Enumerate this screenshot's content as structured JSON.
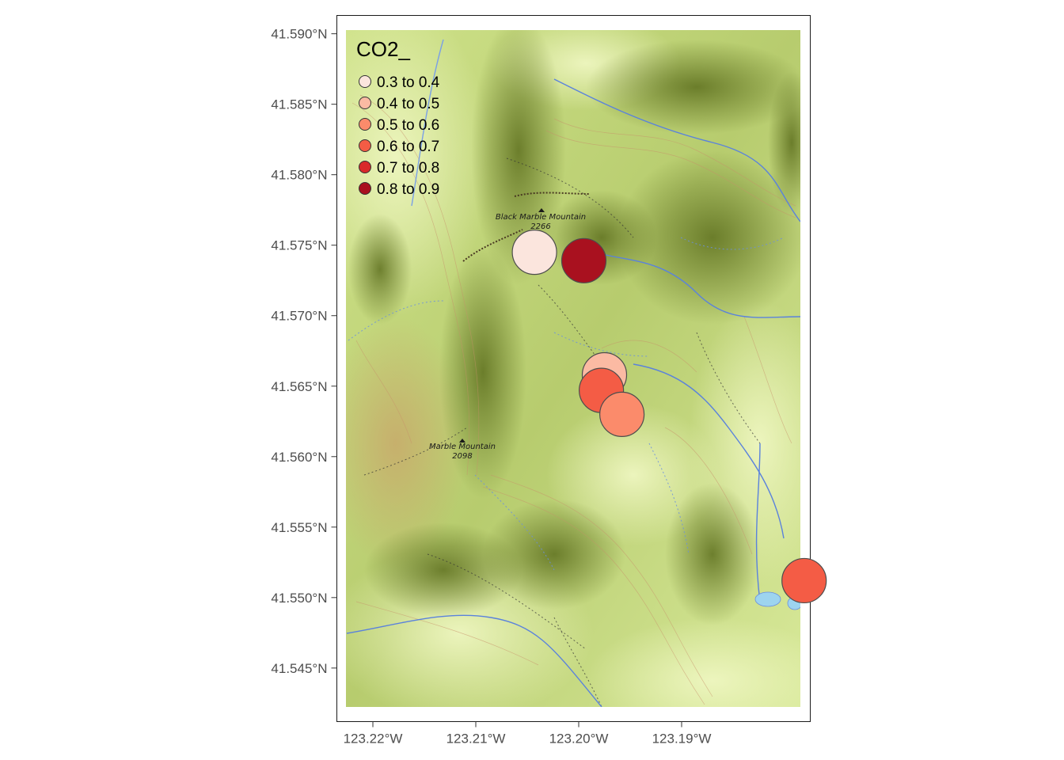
{
  "map": {
    "labels": [
      {
        "name": "Black Marble Mountain",
        "elev": "2266"
      },
      {
        "name": "Marble Mountain",
        "elev": "2098"
      }
    ],
    "basemap_style": "terrain topographic with contour lines",
    "colors": {
      "frame": "#1a1a1a",
      "terrain_light": "#e4f0a8",
      "terrain_mid": "#b9cd72",
      "terrain_dark": "#6c7d28",
      "water": "#6a8fe0",
      "point_outline": "#4d4d4d"
    }
  },
  "axes": {
    "x": {
      "ticks": [
        "123.22°W",
        "123.21°W",
        "123.20°W",
        "123.19°W"
      ],
      "tick_values": [
        -123.22,
        -123.21,
        -123.2,
        -123.19
      ]
    },
    "y": {
      "ticks": [
        "41.590°N",
        "41.585°N",
        "41.580°N",
        "41.575°N",
        "41.570°N",
        "41.565°N",
        "41.560°N",
        "41.555°N",
        "41.550°N",
        "41.545°N"
      ],
      "tick_values": [
        41.59,
        41.585,
        41.58,
        41.575,
        41.57,
        41.565,
        41.56,
        41.555,
        41.55,
        41.545
      ]
    }
  },
  "legend": {
    "title": "CO2_",
    "items": [
      {
        "label": "0.3 to 0.4",
        "color": "#fbe5dd"
      },
      {
        "label": "0.4 to 0.5",
        "color": "#fbbaa3"
      },
      {
        "label": "0.5 to 0.6",
        "color": "#fb8b6b"
      },
      {
        "label": "0.6 to 0.7",
        "color": "#f45c45"
      },
      {
        "label": "0.7 to 0.8",
        "color": "#d92a2a"
      },
      {
        "label": "0.8 to 0.9",
        "color": "#a9111f"
      }
    ]
  },
  "chart_data": {
    "type": "scatter",
    "title": "",
    "xlabel": "",
    "ylabel": "",
    "xlim": [
      -123.2235,
      -123.1775
    ],
    "ylim": [
      41.5412,
      41.5913
    ],
    "legend_position": "top-left",
    "points": [
      {
        "lon": -123.2043,
        "lat": 41.5745,
        "bin": "0.3 to 0.4"
      },
      {
        "lon": -123.1995,
        "lat": 41.5739,
        "bin": "0.8 to 0.9"
      },
      {
        "lon": -123.1975,
        "lat": 41.5658,
        "bin": "0.4 to 0.5"
      },
      {
        "lon": -123.1978,
        "lat": 41.5647,
        "bin": "0.6 to 0.7"
      },
      {
        "lon": -123.1958,
        "lat": 41.563,
        "bin": "0.5 to 0.6"
      },
      {
        "lon": -123.1781,
        "lat": 41.5512,
        "bin": "0.6 to 0.7"
      }
    ]
  }
}
